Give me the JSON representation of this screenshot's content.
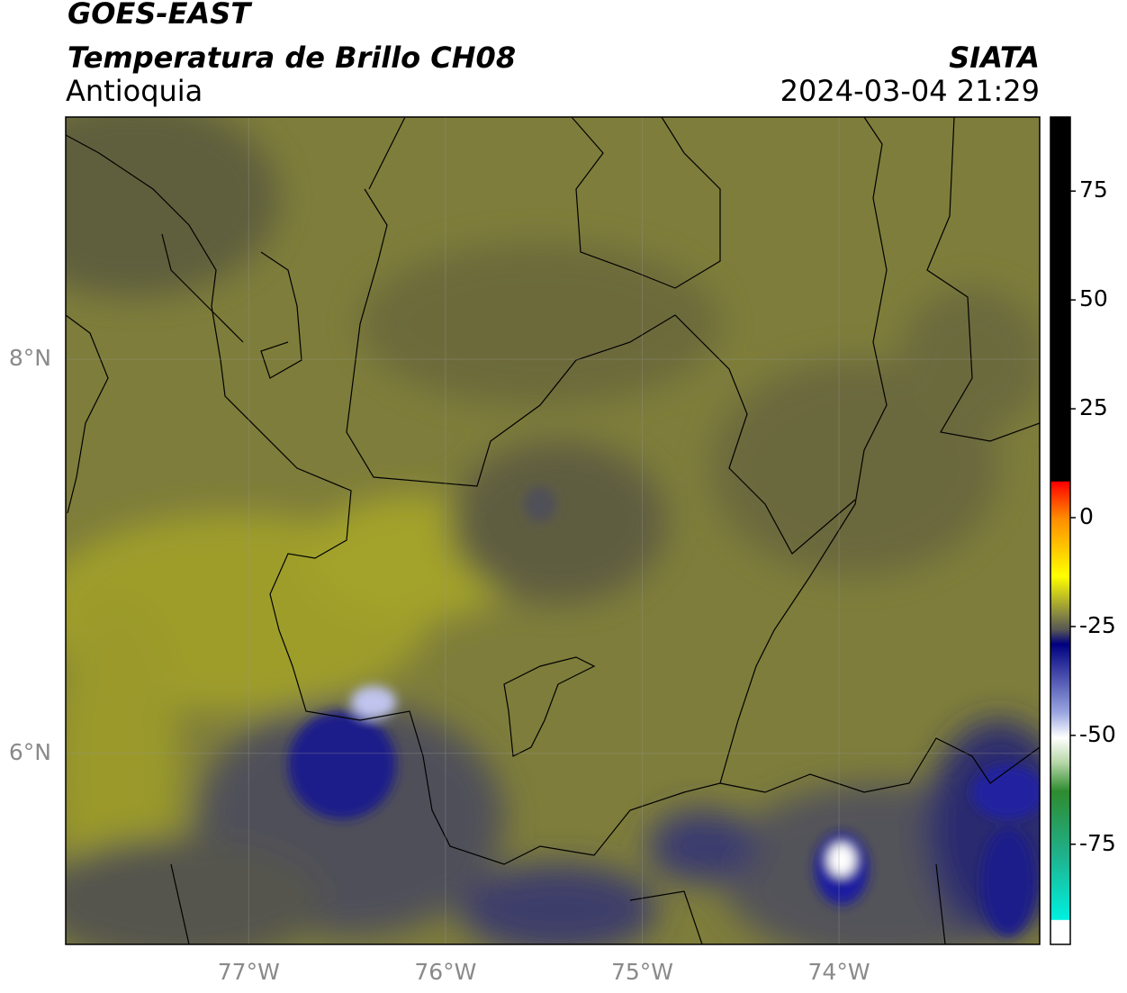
{
  "header": {
    "title": "GOES-EAST",
    "subtitle": "Temperatura de Brillo CH08",
    "region": "Antioquia",
    "source": "SIATA",
    "datetime": "2024-03-04 21:29"
  },
  "map": {
    "xlim": [
      -77.93,
      -72.98
    ],
    "ylim": [
      5.03,
      9.23
    ],
    "xticks": [
      {
        "value": -77,
        "label": "77°W"
      },
      {
        "value": -76,
        "label": "76°W"
      },
      {
        "value": -75,
        "label": "75°W"
      },
      {
        "value": -74,
        "label": "74°W"
      }
    ],
    "yticks": [
      {
        "value": 8,
        "label": "8°N"
      },
      {
        "value": 6,
        "label": "6°N"
      }
    ],
    "grid": true
  },
  "colorbar": {
    "lim": [
      -98,
      92
    ],
    "ticks": [
      75,
      50,
      25,
      0,
      -25,
      -50,
      -75
    ]
  }
}
